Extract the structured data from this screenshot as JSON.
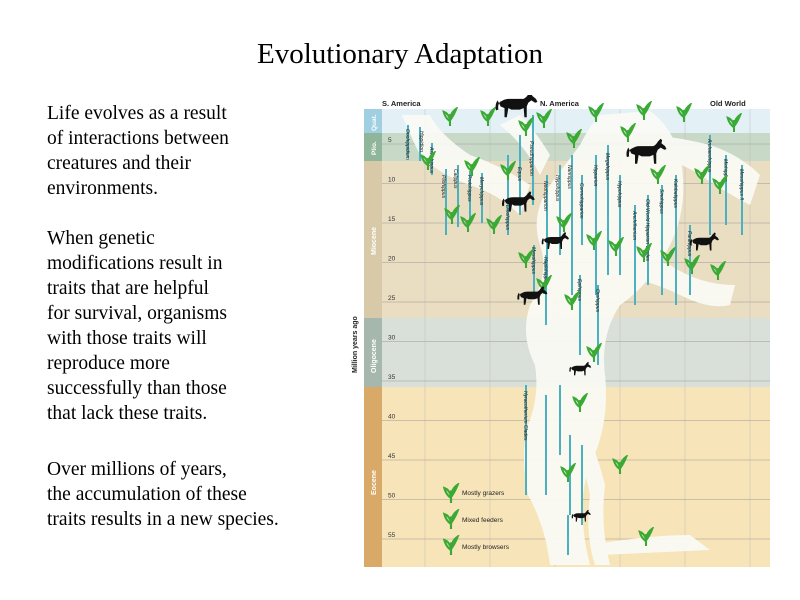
{
  "slide": {
    "title": "Evolutionary Adaptation",
    "paragraphs": [
      [
        "Life evolves as a result",
        "of interactions between",
        "creatures and their",
        "environments."
      ],
      [
        "When genetic",
        "modifications result in",
        "traits that are helpful",
        "for survival, organisms",
        "with those traits will",
        "reproduce more",
        "successfully than those",
        "that lack these traits."
      ],
      [
        "Over millions of years,",
        "the accumulation of these",
        "traits results in a new species."
      ]
    ]
  },
  "diagram": {
    "regions": [
      "S. America",
      "N. America",
      "Old World"
    ],
    "axis_label": "Million years ago",
    "epochs": [
      {
        "name": "Quat.",
        "color": "#9fcfe0"
      },
      {
        "name": "Plio.",
        "color": "#8fb59a"
      },
      {
        "name": "Miocene",
        "color": "#d8caa8"
      },
      {
        "name": "Oligocene",
        "color": "#a6b8ad"
      },
      {
        "name": "Eocene",
        "color": "#d9a968"
      }
    ],
    "ticks": [
      "5",
      "10",
      "15",
      "20",
      "25",
      "30",
      "35",
      "40",
      "45",
      "50",
      "55"
    ],
    "genera": [
      "Onohippidium",
      "Hippidion",
      "Astrohippus",
      "Pliohippus",
      "Calippus",
      "Protohippus",
      "Merychippus",
      "Dinohippus",
      "Equus",
      "Pseudhipparion",
      "Neohipparion",
      "Hypohippus",
      "Nannippus",
      "Cormohipparion",
      "Hipparion",
      "Megahippus",
      "Hypohippus",
      "Anchitherium",
      "Old World Hipparion Clades",
      "Sinohippus",
      "Kalobatippus",
      "Parahippus",
      "Archaeohippus",
      "Miohippus",
      "Mesohippus II",
      "Mesohippus",
      "Haplohippus",
      "Epihippus",
      "Orohippus",
      "Hyracotherium Clades"
    ],
    "legend": [
      "Mostly grazers",
      "Mixed feeders",
      "Mostly browsers"
    ],
    "colors": {
      "eocene_band": "#f7e4b8",
      "oligocene_band": "#d9e0da",
      "miocene_band": "#e9ddc2",
      "plio_band": "#c9d9c8",
      "quat_band": "#e3f1f6",
      "branch": "#ffffff",
      "lineage": "#4bb0bf",
      "plant": "#3aaa35"
    }
  }
}
